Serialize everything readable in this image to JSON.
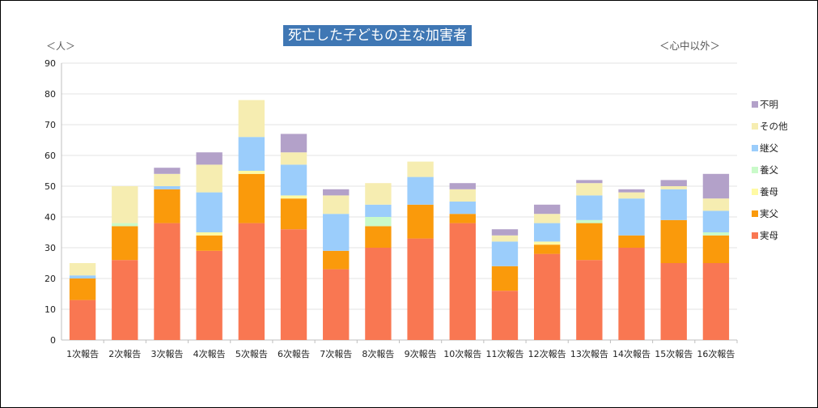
{
  "chart_data": {
    "type": "bar",
    "stacked": true,
    "title": "死亡した子どもの主な加害者",
    "ylabel": "＜人＞",
    "note": "＜心中以外＞",
    "ylim": [
      0,
      90
    ],
    "yticks": [
      0,
      10,
      20,
      30,
      40,
      50,
      60,
      70,
      80,
      90
    ],
    "legend_position": "right",
    "categories": [
      "1次報告",
      "2次報告",
      "3次報告",
      "4次報告",
      "5次報告",
      "6次報告",
      "7次報告",
      "8次報告",
      "9次報告",
      "10次報告",
      "11次報告",
      "12次報告",
      "13次報告",
      "14次報告",
      "15次報告",
      "16次報告"
    ],
    "series": [
      {
        "name": "実母",
        "color": "#f97752",
        "values": [
          13,
          26,
          38,
          29,
          38,
          36,
          23,
          30,
          33,
          38,
          16,
          28,
          26,
          30,
          25,
          25
        ]
      },
      {
        "name": "実父",
        "color": "#fa9a0b",
        "values": [
          7,
          11,
          11,
          5,
          16,
          10,
          6,
          7,
          11,
          3,
          8,
          3,
          12,
          4,
          14,
          9
        ]
      },
      {
        "name": "養母",
        "color": "#fffaa4",
        "values": [
          0,
          0,
          0,
          1,
          1,
          1,
          0,
          0,
          0,
          0,
          0,
          1,
          0,
          0,
          0,
          0
        ]
      },
      {
        "name": "養父",
        "color": "#c9fac9",
        "values": [
          0,
          1,
          0,
          0,
          0,
          0,
          0,
          3,
          0,
          0,
          0,
          0,
          1,
          0,
          0,
          1
        ]
      },
      {
        "name": "継父",
        "color": "#9bcdfb",
        "values": [
          1,
          0,
          1,
          13,
          11,
          10,
          12,
          4,
          9,
          4,
          8,
          6,
          8,
          12,
          10,
          7
        ]
      },
      {
        "name": "その他",
        "color": "#f6edb1",
        "values": [
          4,
          12,
          4,
          9,
          12,
          4,
          6,
          7,
          5,
          4,
          2,
          3,
          4,
          2,
          1,
          4
        ]
      },
      {
        "name": "不明",
        "color": "#b3a1c9",
        "values": [
          0,
          0,
          2,
          4,
          0,
          6,
          2,
          0,
          0,
          2,
          2,
          3,
          1,
          1,
          2,
          8
        ]
      }
    ]
  }
}
